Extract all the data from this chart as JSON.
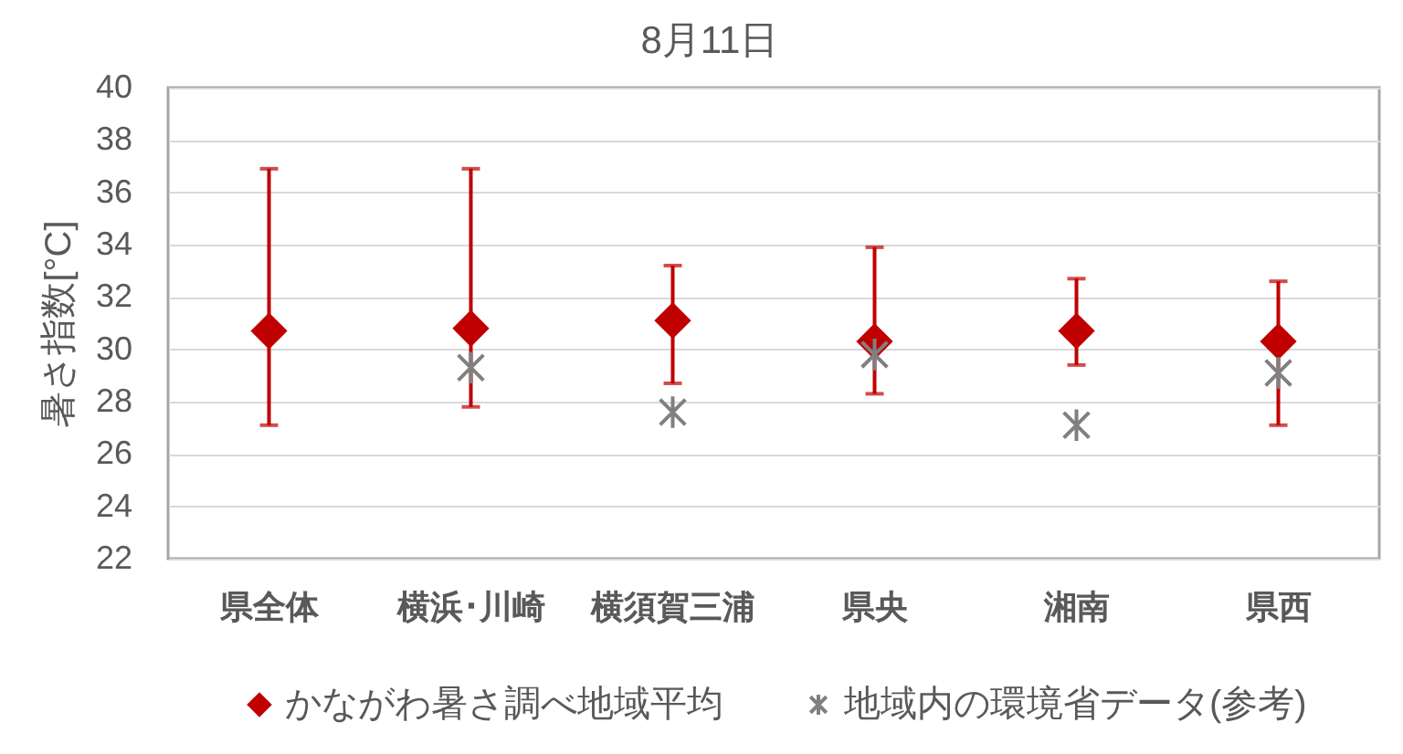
{
  "chart_data": {
    "type": "scatter",
    "title": "8月11日",
    "ylabel": "暑さ指数[°C]",
    "categories": [
      "県全体",
      "横浜･川崎",
      "横須賀三浦",
      "県央",
      "湘南",
      "県西"
    ],
    "series": [
      {
        "name": "かながわ暑さ調べ地域平均",
        "color": "#c00000",
        "marker": "diamond",
        "values": [
          30.7,
          30.8,
          31.1,
          30.3,
          30.7,
          30.3
        ],
        "errors": [
          [
            27.1,
            36.9
          ],
          [
            27.8,
            36.9
          ],
          [
            28.7,
            33.2
          ],
          [
            28.3,
            33.9
          ],
          [
            29.4,
            32.7
          ],
          [
            27.1,
            32.6
          ]
        ]
      },
      {
        "name": "地域内の環境省データ(参考)",
        "color": "#808080",
        "marker": "cross",
        "values": [
          null,
          29.3,
          27.6,
          29.8,
          27.1,
          29.1
        ]
      }
    ],
    "ylim": [
      22,
      40
    ],
    "yticks": [
      22,
      24,
      26,
      28,
      30,
      32,
      34,
      36,
      38,
      40
    ],
    "grid": "y",
    "legend": "bottom"
  }
}
